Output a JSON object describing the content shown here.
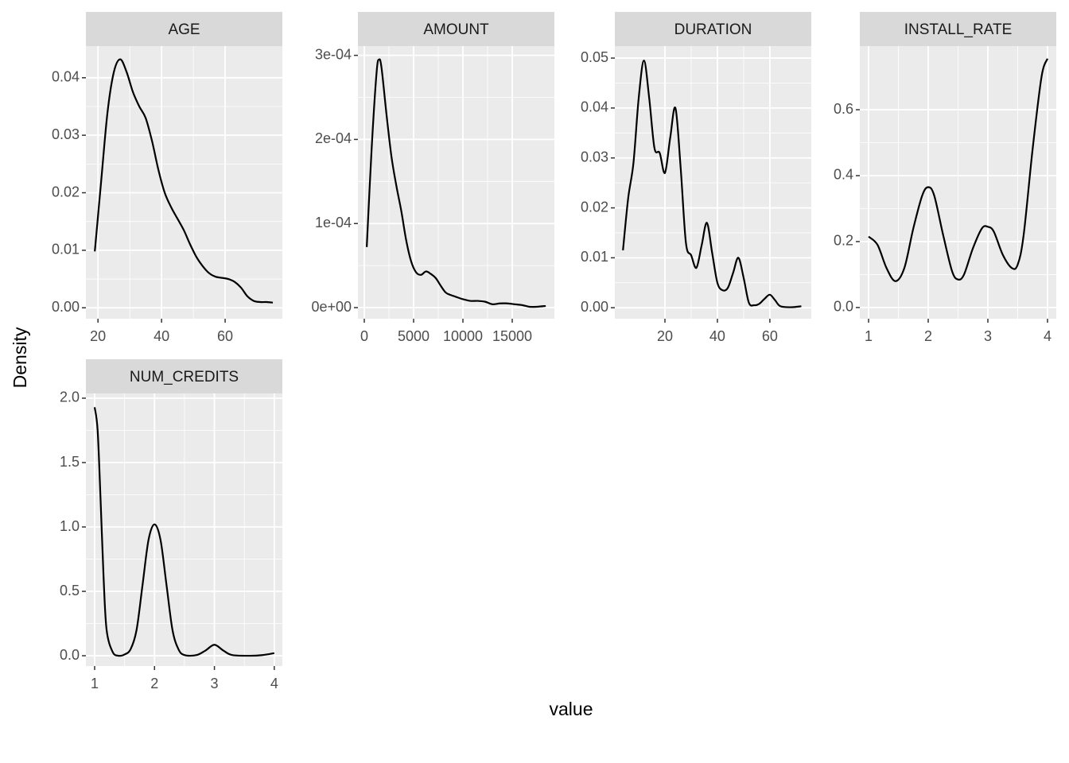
{
  "axis_labels": {
    "x": "value",
    "y": "Density"
  },
  "chart_data": [
    {
      "type": "line",
      "title": "AGE",
      "color": "#000000",
      "grid": true,
      "x": [
        19,
        21,
        23,
        25,
        27,
        29,
        31,
        33,
        35,
        37,
        39,
        41,
        43,
        45,
        47,
        49,
        51,
        53,
        55,
        57,
        59,
        61,
        63,
        65,
        67,
        69,
        71,
        73,
        75
      ],
      "values": [
        0.0098,
        0.022,
        0.034,
        0.041,
        0.0432,
        0.041,
        0.0375,
        0.035,
        0.033,
        0.029,
        0.024,
        0.02,
        0.0175,
        0.0155,
        0.0135,
        0.011,
        0.0088,
        0.0072,
        0.006,
        0.0054,
        0.0052,
        0.005,
        0.0045,
        0.0035,
        0.002,
        0.0012,
        0.001,
        0.001,
        0.0009
      ],
      "xlim": [
        16.2,
        78
      ],
      "ylim": [
        -0.0019,
        0.0455
      ],
      "xticks": [
        20,
        40,
        60
      ],
      "yticks": [
        {
          "value": 0,
          "label": "0.00"
        },
        0.01,
        0.02,
        0.03,
        0.04
      ]
    },
    {
      "type": "line",
      "title": "AMOUNT",
      "color": "#000000",
      "grid": true,
      "x": [
        250,
        750,
        1250,
        1500,
        1750,
        2250,
        2750,
        3250,
        3750,
        4250,
        4750,
        5250,
        5750,
        6250,
        6750,
        7250,
        7750,
        8250,
        8750,
        9250,
        10000,
        10750,
        11500,
        12250,
        13000,
        13750,
        14500,
        15250,
        16000,
        16750,
        17500,
        18400
      ],
      "values": [
        7.2e-05,
        0.00019,
        0.00028,
        0.000295,
        0.000285,
        0.00023,
        0.00018,
        0.000145,
        0.000115,
        8e-05,
        5.5e-05,
        4.2e-05,
        3.9e-05,
        4.3e-05,
        4e-05,
        3.5e-05,
        2.6e-05,
        1.8e-05,
        1.5e-05,
        1.3e-05,
        1e-05,
        8e-06,
        8e-06,
        7e-06,
        4e-06,
        5e-06,
        5e-06,
        4e-06,
        3e-06,
        1e-06,
        1e-06,
        2e-06
      ],
      "xlim": [
        -645,
        19274
      ],
      "ylim": [
        -1.32e-05,
        0.000311
      ],
      "xticks": [
        0,
        5000,
        10000,
        15000
      ],
      "yticks": [
        {
          "value": 0,
          "label": "0e+00"
        },
        {
          "value": 0.0001,
          "label": "1e-04"
        },
        {
          "value": 0.0002,
          "label": "2e-04"
        },
        {
          "value": 0.0003,
          "label": "3e-04"
        }
      ]
    },
    {
      "type": "line",
      "title": "DURATION",
      "color": "#000000",
      "grid": true,
      "x": [
        4,
        6,
        8,
        10,
        12,
        14,
        16,
        18,
        20,
        22,
        24,
        26,
        28,
        30,
        32,
        34,
        36,
        38,
        40,
        42,
        44,
        46,
        48,
        50,
        52,
        54,
        56,
        58,
        60,
        62,
        64,
        68,
        72
      ],
      "values": [
        0.0115,
        0.022,
        0.029,
        0.042,
        0.0495,
        0.042,
        0.032,
        0.031,
        0.027,
        0.034,
        0.04,
        0.028,
        0.013,
        0.0105,
        0.008,
        0.0125,
        0.017,
        0.011,
        0.005,
        0.0035,
        0.004,
        0.007,
        0.01,
        0.006,
        0.001,
        0.0005,
        0.0008,
        0.0018,
        0.0026,
        0.0015,
        0.0003,
        0.0001,
        0.0003
      ],
      "xlim": [
        0.9,
        75.8
      ],
      "ylim": [
        -0.0022,
        0.0524
      ],
      "xticks": [
        20,
        40,
        60
      ],
      "yticks": [
        {
          "value": 0,
          "label": "0.00"
        },
        0.01,
        0.02,
        0.03,
        0.04,
        0.05
      ]
    },
    {
      "type": "line",
      "title": "INSTALL_RATE",
      "color": "#000000",
      "grid": true,
      "x": [
        1,
        1.15,
        1.3,
        1.45,
        1.6,
        1.75,
        1.9,
        2,
        2.1,
        2.25,
        2.4,
        2.5,
        2.6,
        2.75,
        2.9,
        3,
        3.1,
        3.25,
        3.4,
        3.5,
        3.6,
        3.75,
        3.9,
        4
      ],
      "values": [
        0.215,
        0.19,
        0.12,
        0.08,
        0.12,
        0.24,
        0.34,
        0.365,
        0.34,
        0.22,
        0.11,
        0.085,
        0.1,
        0.18,
        0.24,
        0.245,
        0.23,
        0.16,
        0.12,
        0.13,
        0.22,
        0.48,
        0.7,
        0.755
      ],
      "xlim": [
        0.853,
        4.147
      ],
      "ylim": [
        -0.034,
        0.793
      ],
      "xticks": [
        1,
        2,
        3,
        4
      ],
      "yticks": [
        {
          "value": 0,
          "label": "0.0"
        },
        0.2,
        0.4,
        0.6
      ]
    },
    {
      "type": "line",
      "title": "NUM_CREDITS",
      "color": "#000000",
      "grid": true,
      "x": [
        1,
        1.05,
        1.1,
        1.15,
        1.2,
        1.3,
        1.4,
        1.5,
        1.6,
        1.7,
        1.8,
        1.9,
        2,
        2.1,
        2.2,
        2.3,
        2.4,
        2.5,
        2.7,
        2.85,
        3,
        3.15,
        3.3,
        3.6,
        3.8,
        4
      ],
      "values": [
        1.93,
        1.75,
        1.2,
        0.6,
        0.2,
        0.03,
        0,
        0.01,
        0.05,
        0.2,
        0.55,
        0.9,
        1.02,
        0.9,
        0.55,
        0.2,
        0.05,
        0.005,
        0.005,
        0.04,
        0.085,
        0.04,
        0.005,
        0,
        0.005,
        0.02
      ],
      "xlim": [
        0.854,
        4.135
      ],
      "ylim": [
        -0.08,
        2.037
      ],
      "xticks": [
        1,
        2,
        3,
        4
      ],
      "yticks": [
        {
          "value": 0,
          "label": "0.0"
        },
        0.5,
        {
          "value": 1,
          "label": "1.0"
        },
        1.5,
        {
          "value": 2,
          "label": "2.0"
        }
      ]
    }
  ]
}
